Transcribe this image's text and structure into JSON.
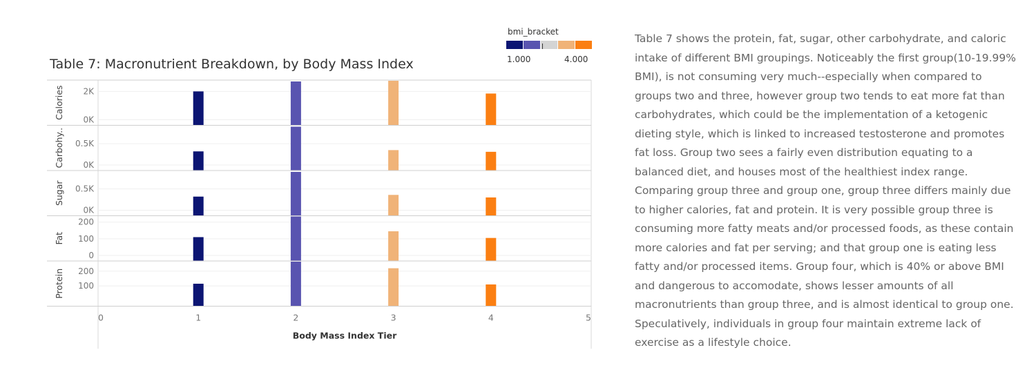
{
  "chart_data": {
    "type": "bar",
    "title": "Table 7: Macronutrient Breakdown, by Body Mass Index",
    "xlabel": "Body Mass Index Tier",
    "xlim": [
      0,
      5
    ],
    "x_ticks": [
      "0",
      "1",
      "2",
      "3",
      "4",
      "5"
    ],
    "categories": [
      1,
      2,
      3,
      4
    ],
    "legend": {
      "title": "bmi_bracket",
      "min_label": "1.000",
      "max_label": "4.000",
      "placement": "top-right",
      "colors": [
        "#0c1573",
        "#5954b0",
        "#d4d4d4",
        "#f0b378",
        "#fb7f12"
      ]
    },
    "bar_colors": [
      "#0c1573",
      "#5954b0",
      "#f0b378",
      "#fb7f12"
    ],
    "grid": true,
    "rows": [
      {
        "label": "Calories",
        "ylim": [
          0,
          2700
        ],
        "ticks": [
          0,
          2000
        ],
        "tick_labels": [
          "0K",
          "2K"
        ],
        "values": [
          2000,
          2700,
          2900,
          1850
        ]
      },
      {
        "label": "Carbohy..",
        "ylim": [
          0,
          900
        ],
        "ticks": [
          0,
          500
        ],
        "tick_labels": [
          "0K",
          "0.5K"
        ],
        "values": [
          320,
          900,
          350,
          310
        ]
      },
      {
        "label": "Sugar",
        "ylim": [
          0,
          900
        ],
        "ticks": [
          0,
          500
        ],
        "tick_labels": [
          "0K",
          "0.5K"
        ],
        "values": [
          320,
          900,
          360,
          300
        ]
      },
      {
        "label": "Fat",
        "ylim": [
          0,
          230
        ],
        "ticks": [
          0,
          100,
          200
        ],
        "tick_labels": [
          "0",
          "100",
          "200"
        ],
        "values": [
          110,
          250,
          145,
          105
        ]
      },
      {
        "label": "Protein",
        "ylim": [
          0,
          260
        ],
        "ticks": [
          100,
          200
        ],
        "tick_labels": [
          "100",
          "200"
        ],
        "values": [
          115,
          290,
          220,
          110
        ]
      }
    ]
  },
  "description": "Table 7 shows the protein, fat, sugar, other carbohydrate, and caloric intake of different BMI groupings. Noticeably the first group(10-19.99% BMI), is not consuming very much--especially when compared to groups two and three, however group two tends to eat more fat than carbohydrates, which could be the implementation of a ketogenic dieting style, which is linked to increased testosterone and promotes fat loss. Group two sees a fairly even distribution equating to a balanced diet, and houses most of the healthiest index range. Comparing group three and group one, group three differs mainly due to higher calories, fat and protein. It is very possible group three is consuming more fatty meats and/or processed foods, as these contain more calories and fat per serving; and that group one is eating less fatty and/or processed items. Group four, which is 40% or above BMI and dangerous to accomodate, shows lesser amounts of all macronutrients than group three, and is almost identical to group one. Speculatively, individuals in group four maintain extreme lack of exercise as a lifestyle choice."
}
